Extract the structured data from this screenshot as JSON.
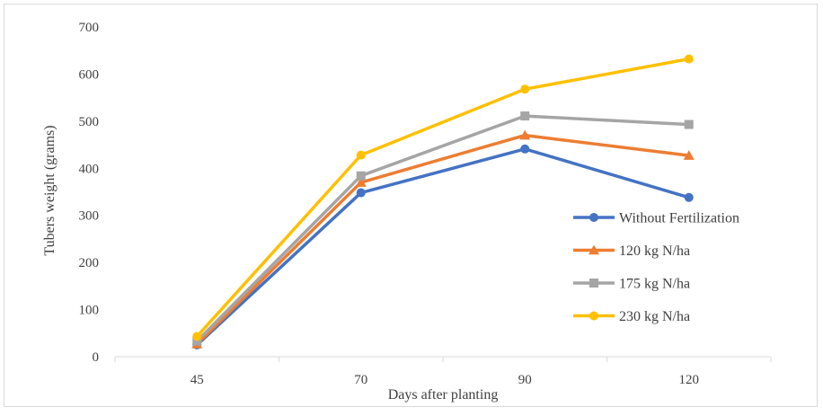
{
  "chart_data": {
    "type": "line",
    "x": [
      "45",
      "70",
      "90",
      "120"
    ],
    "xlabel": "Days after planting",
    "ylabel": "Tubers weight (grams)",
    "ylim": [
      0,
      700
    ],
    "yticks": [
      0,
      100,
      200,
      300,
      400,
      500,
      600,
      700
    ],
    "grid": false,
    "legend_position": "right",
    "series": [
      {
        "name": "Without Fertilization",
        "values": [
          25,
          348,
          441,
          338
        ],
        "color": "#4472C4",
        "marker": "circle"
      },
      {
        "name": "120 kg N/ha",
        "values": [
          27,
          370,
          470,
          427
        ],
        "color": "#ED7D31",
        "marker": "triangle"
      },
      {
        "name": "175 kg N/ha",
        "values": [
          33,
          384,
          511,
          493
        ],
        "color": "#A5A5A5",
        "marker": "square"
      },
      {
        "name": "230 kg N/ha",
        "values": [
          43,
          428,
          568,
          632
        ],
        "color": "#FFC000",
        "marker": "circle"
      }
    ]
  }
}
